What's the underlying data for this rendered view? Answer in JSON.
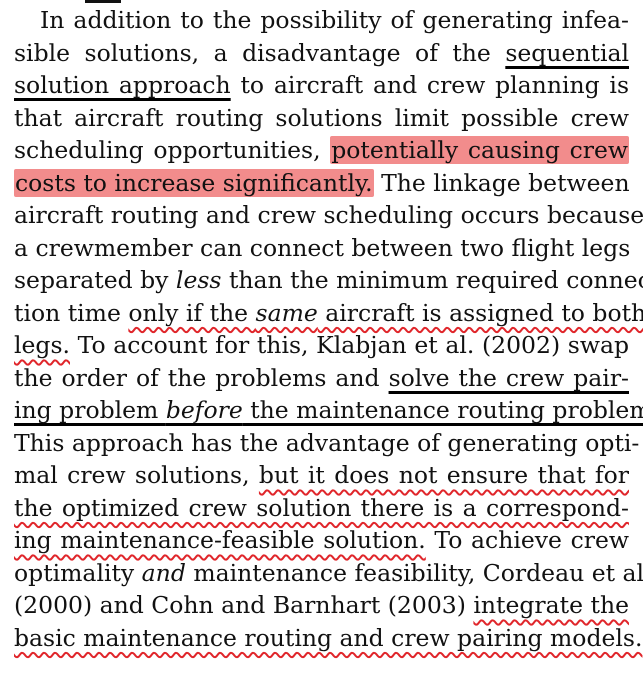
{
  "paragraph": {
    "lines": [
      [
        {
          "t": "In addition to the possibility of generating infea-"
        }
      ],
      [
        {
          "t": "sible solutions, a disadvantage of the "
        },
        {
          "t": "sequential",
          "s": "u-black"
        }
      ],
      [
        {
          "t": "solution approach",
          "s": "u-black"
        },
        {
          "t": " to aircraft and crew planning is"
        }
      ],
      [
        {
          "t": "that aircraft routing solutions limit possible crew"
        }
      ],
      [
        {
          "t": "scheduling opportunities, "
        },
        {
          "t": "potentially causing crew",
          "s": "hl"
        }
      ],
      [
        {
          "t": "costs to increase significantly.",
          "s": "hl"
        },
        {
          "t": " The linkage between"
        }
      ],
      [
        {
          "t": "aircraft routing and crew scheduling occurs because"
        }
      ],
      [
        {
          "t": "a crewmember can connect between two flight legs"
        }
      ],
      [
        {
          "t": "separated by "
        },
        {
          "t": "less",
          "s": "em"
        },
        {
          "t": " than the minimum required connec-"
        }
      ],
      [
        {
          "t": "tion time "
        },
        {
          "t": "only if the ",
          "s": "squiggle"
        },
        {
          "t": "same",
          "s": "em squiggle"
        },
        {
          "t": " aircraft is assigned to both",
          "s": "squiggle"
        }
      ],
      [
        {
          "t": "legs.",
          "s": "squiggle"
        },
        {
          "t": " To account for this, Klabjan et al. (2002) swap"
        }
      ],
      [
        {
          "t": "the order of the problems and "
        },
        {
          "t": "solve the crew pair-",
          "s": "u-black"
        }
      ],
      [
        {
          "t": "ing problem ",
          "s": "u-black"
        },
        {
          "t": "before",
          "s": "em u-black"
        },
        {
          "t": " the maintenance routing problem.",
          "s": "u-black"
        }
      ],
      [
        {
          "t": "This approach has the advantage of generating opti-"
        }
      ],
      [
        {
          "t": "mal crew solutions, "
        },
        {
          "t": "but it does not ensure that for",
          "s": "squiggle"
        }
      ],
      [
        {
          "t": "the optimized crew solution there is a correspond-",
          "s": "squiggle"
        }
      ],
      [
        {
          "t": "ing maintenance-feasible solution.",
          "s": "squiggle"
        },
        {
          "t": " To achieve crew"
        }
      ],
      [
        {
          "t": "optimality "
        },
        {
          "t": "and",
          "s": "em"
        },
        {
          "t": " maintenance feasibility, Cordeau et al."
        }
      ],
      [
        {
          "t": "(2000) and Cohn and Barnhart (2003) "
        },
        {
          "t": "integrate the",
          "s": "squiggle"
        }
      ],
      [
        {
          "t": "basic maintenance routing and crew pairing models.",
          "s": "squiggle"
        }
      ]
    ]
  }
}
